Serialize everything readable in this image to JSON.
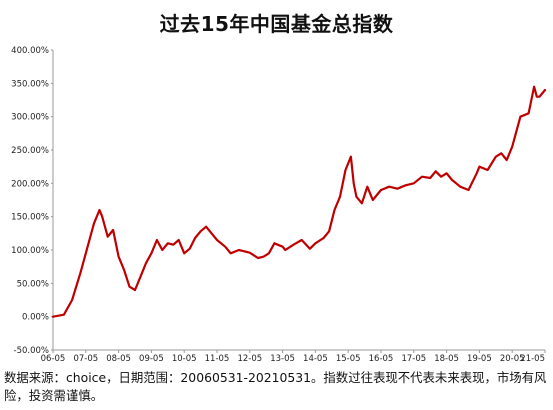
{
  "chart_data": {
    "type": "line",
    "title": "过去15年中国基金总指数",
    "xlabel": "",
    "ylabel": "",
    "x_ticks": [
      "06-05",
      "07-05",
      "08-05",
      "09-05",
      "10-05",
      "11-05",
      "12-05",
      "13-05",
      "14-05",
      "15-05",
      "16-05",
      "17-05",
      "18-05",
      "19-05",
      "20-05",
      "21-05"
    ],
    "y_ticks": [
      "400.00%",
      "350.00%",
      "300.00%",
      "250.00%",
      "200.00%",
      "150.00%",
      "100.00%",
      "50.00%",
      "0.00%",
      "-50.00%"
    ],
    "ylim": [
      -50,
      400
    ],
    "y_unit": "%",
    "grid": false,
    "legend": "none",
    "line_color": "#c00000",
    "series": [
      {
        "x": [
          "2006-05",
          "2006-09",
          "2006-12",
          "2007-03",
          "2007-05",
          "2007-08",
          "2007-10",
          "2007-11",
          "2008-01",
          "2008-03",
          "2008-05",
          "2008-07",
          "2008-09",
          "2008-11",
          "2009-01",
          "2009-03",
          "2009-05",
          "2009-07",
          "2009-09",
          "2009-11",
          "2010-01",
          "2010-03",
          "2010-05",
          "2010-07",
          "2010-09",
          "2010-11",
          "2011-01",
          "2011-03",
          "2011-05",
          "2011-08",
          "2011-10",
          "2012-01",
          "2012-03",
          "2012-05",
          "2012-08",
          "2012-10",
          "2012-12",
          "2013-02",
          "2013-05",
          "2013-06",
          "2013-09",
          "2013-12",
          "2014-03",
          "2014-05",
          "2014-08",
          "2014-10",
          "2014-12",
          "2015-02",
          "2015-04",
          "2015-06",
          "2015-07",
          "2015-08",
          "2015-10",
          "2015-12",
          "2016-02",
          "2016-05",
          "2016-08",
          "2016-11",
          "2017-02",
          "2017-05",
          "2017-08",
          "2017-11",
          "2018-01",
          "2018-03",
          "2018-05",
          "2018-07",
          "2018-10",
          "2019-01",
          "2019-04",
          "2019-05",
          "2019-08",
          "2019-11",
          "2020-01",
          "2020-03",
          "2020-05",
          "2020-08",
          "2020-11",
          "2021-01",
          "2021-02",
          "2021-03",
          "2021-05"
        ],
        "values": [
          0,
          3,
          25,
          65,
          95,
          140,
          160,
          150,
          120,
          130,
          90,
          70,
          45,
          40,
          60,
          80,
          95,
          115,
          100,
          110,
          108,
          115,
          95,
          102,
          118,
          128,
          135,
          125,
          115,
          105,
          95,
          100,
          98,
          96,
          88,
          90,
          95,
          110,
          105,
          100,
          108,
          115,
          102,
          110,
          118,
          128,
          160,
          180,
          220,
          240,
          200,
          180,
          170,
          195,
          175,
          190,
          195,
          192,
          197,
          200,
          210,
          208,
          218,
          210,
          215,
          205,
          195,
          190,
          215,
          225,
          220,
          240,
          245,
          235,
          255,
          300,
          305,
          345,
          330,
          330,
          340
        ]
      }
    ]
  },
  "footnote": "数据来源：choice，日期范围：20060531-20210531。指数过往表现不代表未来表现，市场有风险，投资需谨慎。"
}
